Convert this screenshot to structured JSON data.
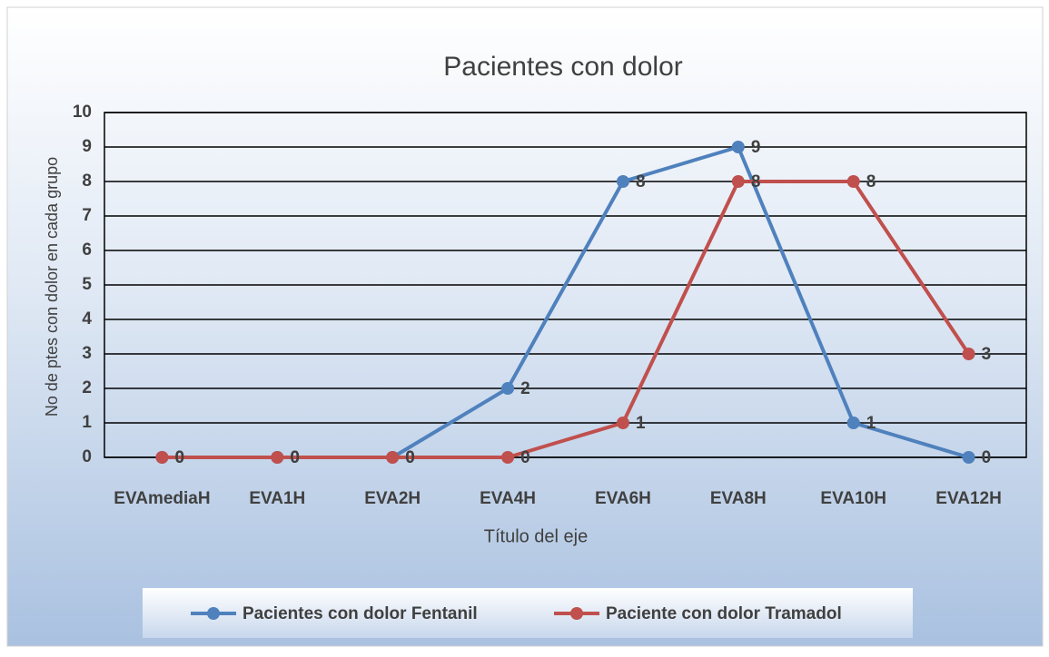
{
  "chart_data": {
    "type": "line",
    "title": "Pacientes con dolor",
    "x_label": "Título del eje",
    "y_label": "No de ptes con dolor en cada grupo",
    "categories": [
      "EVAmediaH",
      "EVA1H",
      "EVA2H",
      "EVA4H",
      "EVA6H",
      "EVA8H",
      "EVA10H",
      "EVA12H"
    ],
    "series": [
      {
        "name": "Pacientes con dolor Fentanil",
        "color": "#4f81bd",
        "values": [
          0,
          0,
          0,
          2,
          8,
          9,
          1,
          0
        ]
      },
      {
        "name": "Paciente con dolor Tramadol",
        "color": "#c0504d",
        "values": [
          0,
          0,
          0,
          0,
          1,
          8,
          8,
          3
        ]
      }
    ],
    "ylim": [
      0,
      10
    ],
    "yticks": [
      0,
      1,
      2,
      3,
      4,
      5,
      6,
      7,
      8,
      9,
      10
    ],
    "grid": true,
    "legend": "bottom"
  }
}
